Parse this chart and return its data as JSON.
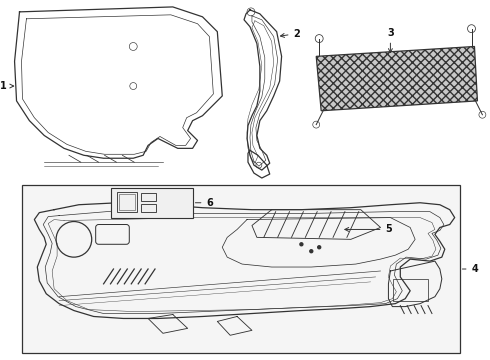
{
  "bg_color": "#ffffff",
  "line_color": "#333333",
  "label_color": "#111111",
  "figsize": [
    4.9,
    3.6
  ],
  "dpi": 100
}
